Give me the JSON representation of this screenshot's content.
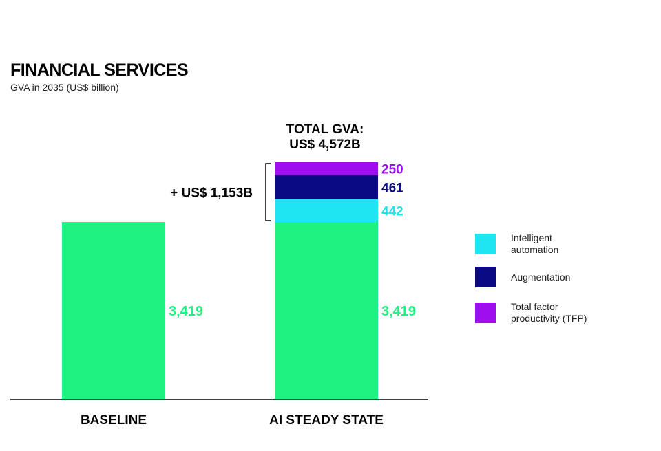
{
  "chart_data": {
    "type": "bar",
    "stacked": true,
    "title": "FINANCIAL SERVICES",
    "subtitle": "GVA in 2035 (US$ billion)",
    "categories": [
      "BASELINE",
      "AI STEADY STATE"
    ],
    "series": [
      {
        "name": "Baseline",
        "color": "#1ef283",
        "values": [
          3419,
          3419
        ],
        "labels": [
          "3,419",
          "3,419"
        ]
      },
      {
        "name": "Intelligent automation",
        "color": "#1de6f2",
        "values": [
          0,
          442
        ],
        "labels": [
          "",
          "442"
        ]
      },
      {
        "name": "Augmentation",
        "color": "#0a0a82",
        "values": [
          0,
          461
        ],
        "labels": [
          "",
          "461"
        ]
      },
      {
        "name": "Total factor productivity (TFP)",
        "color": "#9e0ff0",
        "values": [
          0,
          250
        ],
        "labels": [
          "",
          "250"
        ]
      }
    ],
    "total_annotation": [
      "TOTAL GVA:",
      "US$ 4,572B"
    ],
    "increase_annotation": "+ US$ 1,153B",
    "legend": {
      "position": "right",
      "items": [
        {
          "label": "Intelligent automation",
          "color": "#1de6f2"
        },
        {
          "label": "Augmentation",
          "color": "#0a0a82"
        },
        {
          "label": "Total factor productivity (TFP)",
          "color": "#9e0ff0"
        }
      ]
    },
    "xlabel": "",
    "ylabel": "",
    "grid": false
  }
}
